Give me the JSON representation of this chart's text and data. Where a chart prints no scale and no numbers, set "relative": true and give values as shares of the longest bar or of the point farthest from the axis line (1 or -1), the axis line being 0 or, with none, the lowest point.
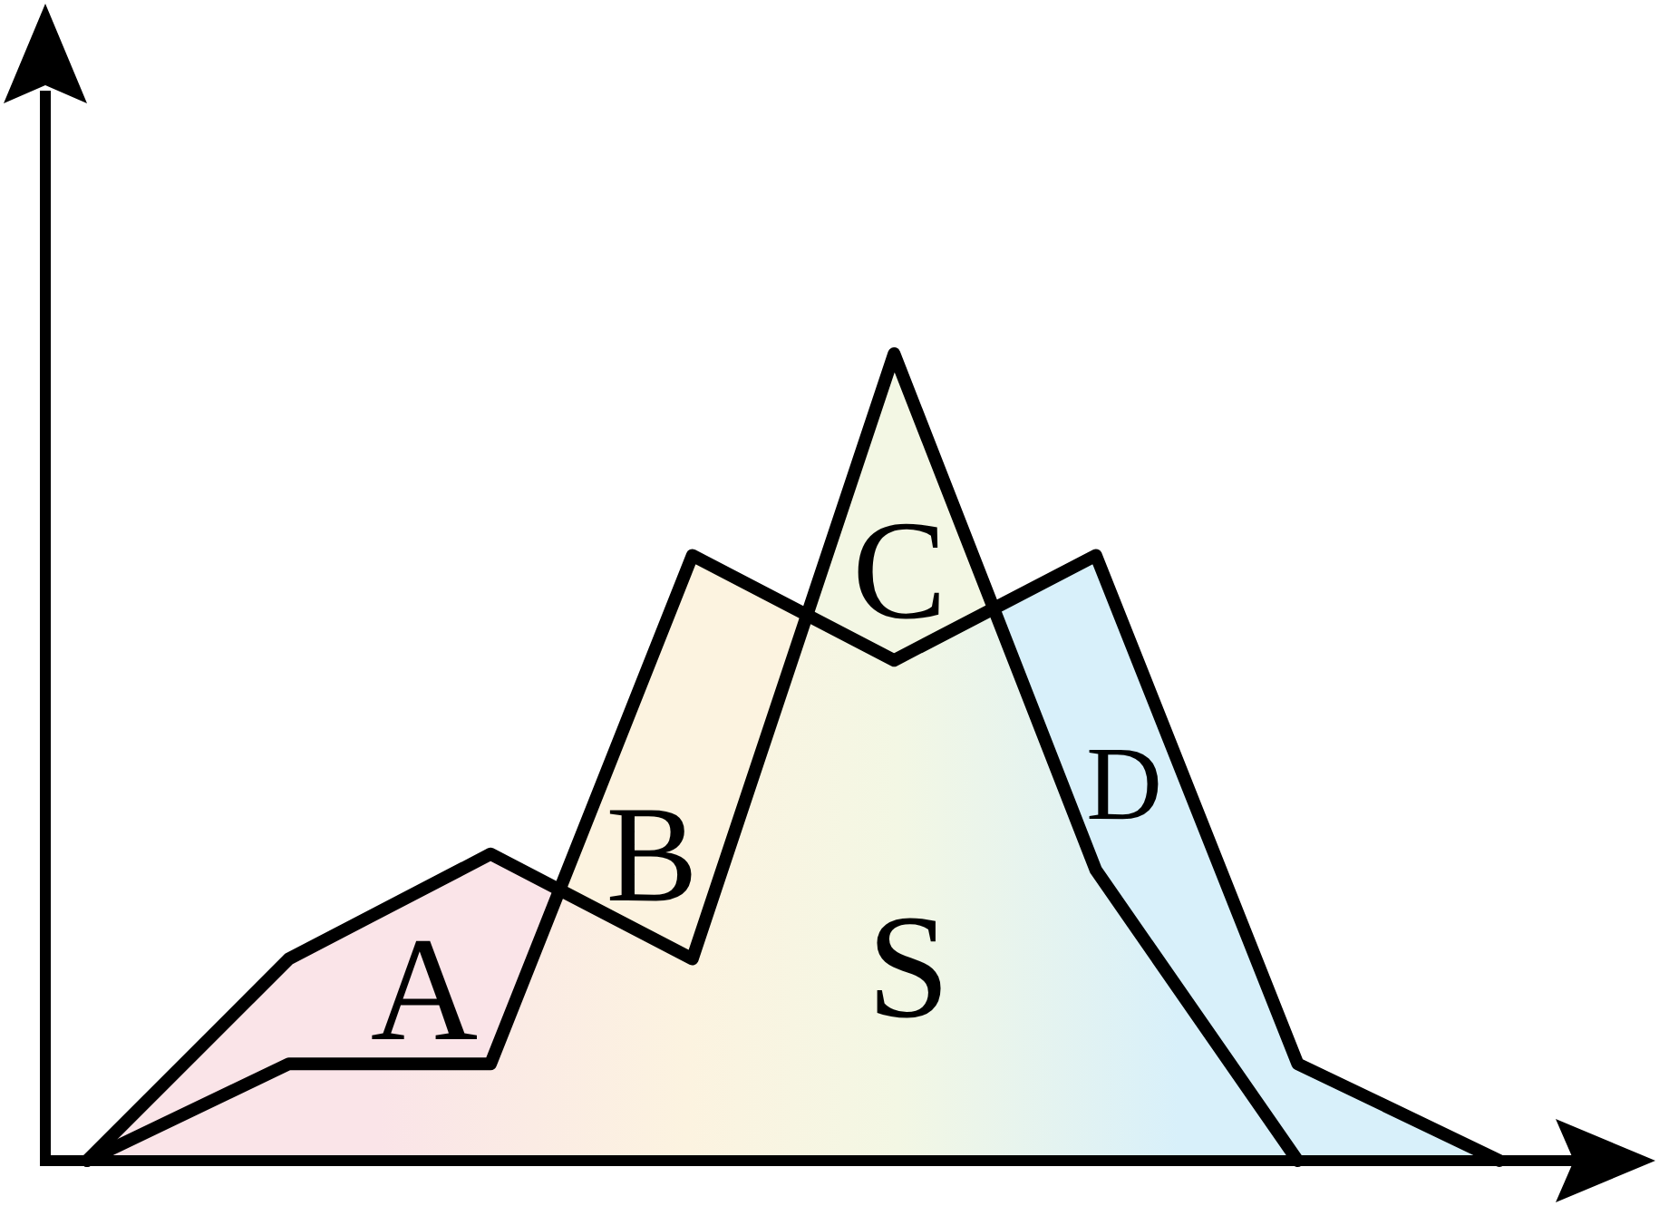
{
  "chart_data": {
    "type": "line",
    "relative": true,
    "categories": [
      null,
      null,
      null,
      null,
      null,
      null,
      null,
      null
    ],
    "series": [
      {
        "color": "#000000",
        "values": [
          0,
          0.12,
          0.12,
          0.75,
          0.62,
          0.75,
          0.12,
          0
        ]
      },
      {
        "color": "#000000",
        "values": [
          0,
          0.25,
          0.38,
          0.25,
          1,
          0.36,
          0,
          null
        ]
      }
    ],
    "annotations": [
      "A",
      "B",
      "C",
      "D",
      "S"
    ]
  }
}
